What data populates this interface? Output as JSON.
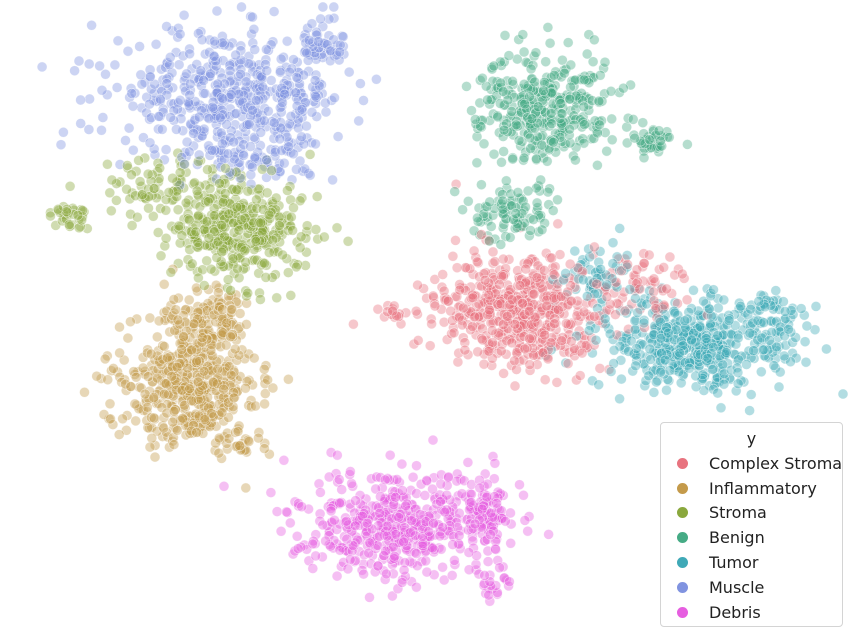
{
  "chart_data": {
    "type": "scatter",
    "title": "",
    "xlabel": "",
    "ylabel": "",
    "axes_visible": false,
    "grid": false,
    "marker_alpha": 0.4,
    "legend": {
      "title": "y",
      "placement": "bottom-right"
    },
    "series": [
      {
        "name": "Complex Stroma",
        "color": "#e8737f",
        "clusters": [
          {
            "center": [
              520,
              310
            ],
            "spread": [
              55,
              40
            ],
            "count": 520
          },
          {
            "center": [
              640,
              290
            ],
            "spread": [
              30,
              25
            ],
            "count": 70
          },
          {
            "center": [
              395,
              315
            ],
            "spread": [
              10,
              8
            ],
            "count": 15
          }
        ]
      },
      {
        "name": "Inflammatory",
        "color": "#c49a4a",
        "clusters": [
          {
            "center": [
              190,
              385
            ],
            "spread": [
              45,
              40
            ],
            "count": 480
          },
          {
            "center": [
              210,
              320
            ],
            "spread": [
              30,
              20
            ],
            "count": 120
          },
          {
            "center": [
              240,
              445
            ],
            "spread": [
              20,
              8
            ],
            "count": 25
          }
        ]
      },
      {
        "name": "Stroma",
        "color": "#8aa83d",
        "clusters": [
          {
            "center": [
              240,
              230
            ],
            "spread": [
              45,
              35
            ],
            "count": 380
          },
          {
            "center": [
              70,
              215
            ],
            "spread": [
              14,
              10
            ],
            "count": 30
          },
          {
            "center": [
              160,
              190
            ],
            "spread": [
              40,
              20
            ],
            "count": 80
          }
        ]
      },
      {
        "name": "Benign",
        "color": "#45ab85",
        "clusters": [
          {
            "center": [
              545,
              110
            ],
            "spread": [
              45,
              38
            ],
            "count": 360
          },
          {
            "center": [
              650,
              140
            ],
            "spread": [
              18,
              10
            ],
            "count": 40
          },
          {
            "center": [
              515,
              215
            ],
            "spread": [
              30,
              18
            ],
            "count": 90
          }
        ]
      },
      {
        "name": "Tumor",
        "color": "#3fa9b7",
        "clusters": [
          {
            "center": [
              690,
              345
            ],
            "spread": [
              60,
              30
            ],
            "count": 460
          },
          {
            "center": [
              770,
              320
            ],
            "spread": [
              25,
              25
            ],
            "count": 70
          },
          {
            "center": [
              600,
              275
            ],
            "spread": [
              30,
              20
            ],
            "count": 60
          }
        ]
      },
      {
        "name": "Muscle",
        "color": "#8093e0",
        "clusters": [
          {
            "center": [
              230,
              95
            ],
            "spread": [
              75,
              40
            ],
            "count": 500
          },
          {
            "center": [
              320,
              45
            ],
            "spread": [
              18,
              15
            ],
            "count": 50
          },
          {
            "center": [
              260,
              160
            ],
            "spread": [
              40,
              15
            ],
            "count": 60
          }
        ]
      },
      {
        "name": "Debris",
        "color": "#e65ee0",
        "clusters": [
          {
            "center": [
              400,
              525
            ],
            "spread": [
              65,
              35
            ],
            "count": 500
          },
          {
            "center": [
              485,
              510
            ],
            "spread": [
              18,
              25
            ],
            "count": 80
          },
          {
            "center": [
              495,
              585
            ],
            "spread": [
              12,
              8
            ],
            "count": 20
          }
        ]
      }
    ]
  }
}
